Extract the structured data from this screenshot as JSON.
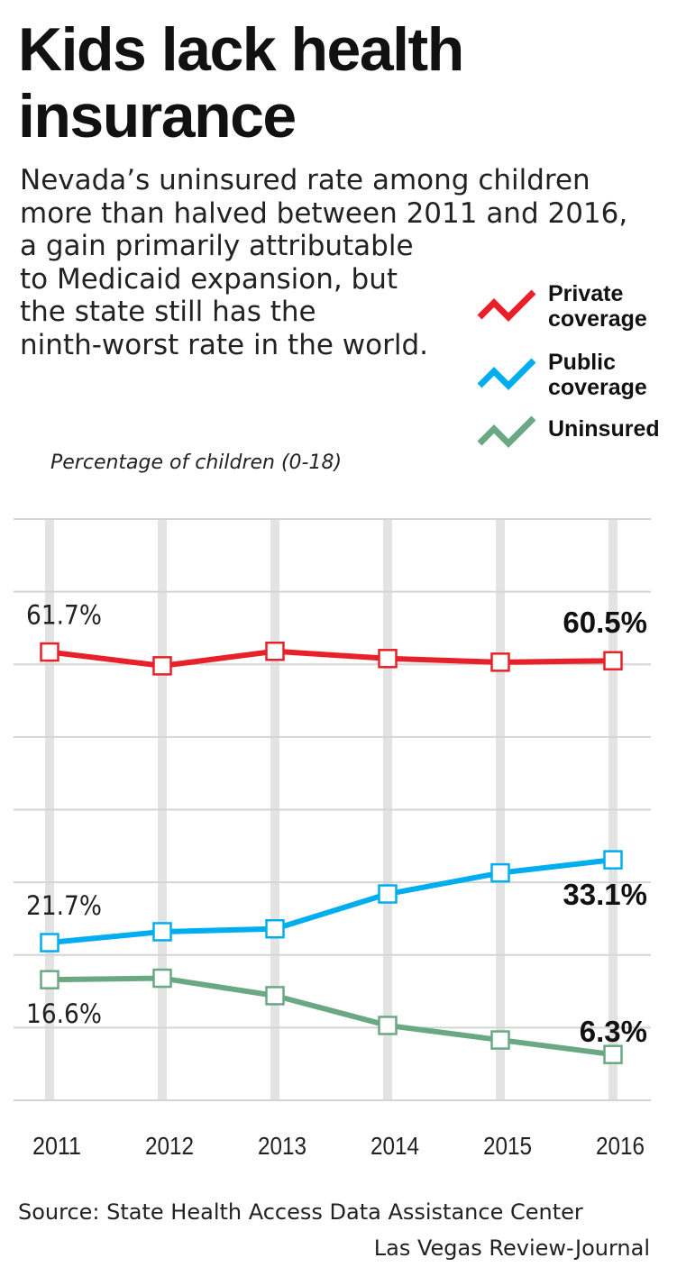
{
  "header": {
    "title": "Kids lack health insurance",
    "description_lines": [
      "Nevada’s uninsured rate among children",
      "more than halved between 2011 and 2016,",
      "a gain primarily attributable",
      "to Medicaid expansion, but",
      "the state still has the",
      "ninth-worst rate in the world."
    ]
  },
  "legend": {
    "items": [
      {
        "label": "Private\ncoverage",
        "color": "#e8202a",
        "icon": "zigzag-line-icon"
      },
      {
        "label": "Public\ncoverage",
        "color": "#00aeef",
        "icon": "zigzag-line-icon"
      },
      {
        "label": "Uninsured",
        "color": "#6aa884",
        "icon": "zigzag-line-icon"
      }
    ]
  },
  "units_label": "Percentage of children (0-18)",
  "chart_data": {
    "type": "line",
    "x": [
      "2011",
      "2012",
      "2013",
      "2014",
      "2015",
      "2016"
    ],
    "ylim": [
      0,
      80
    ],
    "grid": true,
    "series": [
      {
        "name": "Private coverage",
        "color": "#e8202a",
        "values": [
          61.7,
          59.8,
          61.8,
          60.8,
          60.3,
          60.5
        ],
        "start_label": "61.7%",
        "end_label": "60.5%"
      },
      {
        "name": "Public coverage",
        "color": "#00aeef",
        "values": [
          21.7,
          23.2,
          23.6,
          28.4,
          31.3,
          33.1
        ],
        "start_label": "21.7%",
        "end_label": "33.1%"
      },
      {
        "name": "Uninsured",
        "color": "#6aa884",
        "values": [
          16.6,
          16.8,
          14.4,
          10.3,
          8.3,
          6.3
        ],
        "start_label": "16.6%",
        "end_label": "6.3%"
      }
    ]
  },
  "footer": {
    "source": "Source: State Health Access Data Assistance Center",
    "credit": "Las Vegas Review-Journal"
  }
}
